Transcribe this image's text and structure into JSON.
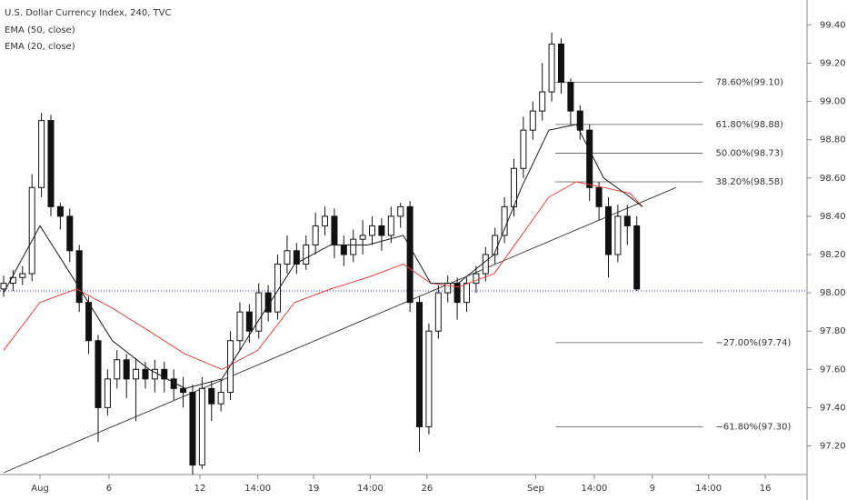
{
  "chart_data": {
    "type": "candlestick",
    "title": "U.S. Dollar Currency Index, 240, TVC",
    "legend": [
      "EMA (50, close)",
      "EMA (20, close)"
    ],
    "x": [
      0,
      1,
      2,
      3,
      4,
      5,
      6,
      7,
      8,
      9,
      10,
      11,
      12,
      13,
      14,
      15,
      16,
      17,
      18,
      19,
      20,
      21,
      22,
      23,
      24,
      25,
      26,
      27,
      28,
      29,
      30,
      31,
      32,
      33,
      34,
      35,
      36,
      37,
      38,
      39,
      40,
      41,
      42,
      43,
      44,
      45,
      46,
      47,
      48,
      49,
      50,
      51,
      52,
      53,
      54,
      55,
      56,
      57,
      58,
      59,
      60,
      61,
      62,
      63,
      64,
      65,
      66,
      67
    ],
    "open": [
      98.02,
      98.05,
      98.08,
      98.1,
      98.55,
      98.9,
      98.45,
      98.4,
      98.22,
      97.95,
      97.75,
      97.4,
      97.55,
      97.65,
      97.55,
      97.6,
      97.55,
      97.6,
      97.55,
      97.5,
      97.48,
      97.1,
      97.5,
      97.42,
      97.48,
      97.75,
      97.9,
      97.8,
      98.0,
      97.9,
      98.15,
      98.22,
      98.15,
      98.25,
      98.35,
      98.4,
      98.25,
      98.2,
      98.28,
      98.3,
      98.35,
      98.3,
      98.4,
      98.45,
      97.95,
      97.3,
      97.8,
      98.0,
      98.05,
      97.95,
      98.05,
      98.1,
      98.2,
      98.3,
      98.45,
      98.65,
      98.85,
      98.95,
      99.05,
      99.3,
      99.1,
      98.95,
      98.85,
      98.55,
      98.45,
      98.2,
      98.4,
      98.35
    ],
    "high": [
      98.09,
      98.12,
      98.14,
      98.62,
      98.94,
      98.93,
      98.47,
      98.44,
      98.25,
      97.98,
      97.78,
      97.6,
      97.7,
      97.68,
      97.66,
      97.64,
      97.65,
      97.64,
      97.6,
      97.56,
      97.52,
      97.56,
      97.54,
      97.55,
      97.8,
      97.95,
      97.94,
      98.05,
      98.04,
      98.2,
      98.3,
      98.26,
      98.3,
      98.42,
      98.45,
      98.44,
      98.3,
      98.33,
      98.38,
      98.4,
      98.39,
      98.45,
      98.47,
      98.48,
      97.98,
      97.84,
      98.04,
      98.09,
      98.08,
      98.08,
      98.14,
      98.24,
      98.34,
      98.5,
      98.7,
      98.92,
      99.0,
      99.2,
      99.36,
      99.33,
      99.12,
      98.98,
      98.88,
      98.58,
      98.5,
      98.46,
      98.46,
      98.4
    ],
    "low": [
      97.98,
      98.01,
      98.04,
      98.06,
      98.5,
      98.4,
      98.33,
      98.16,
      97.9,
      97.68,
      97.22,
      97.36,
      97.5,
      97.45,
      97.33,
      97.5,
      97.48,
      97.48,
      97.44,
      97.4,
      97.05,
      97.08,
      97.33,
      97.38,
      97.44,
      97.7,
      97.74,
      97.76,
      97.85,
      97.86,
      98.1,
      98.1,
      98.12,
      98.2,
      98.3,
      98.18,
      98.14,
      98.16,
      98.2,
      98.25,
      98.22,
      98.26,
      98.34,
      97.9,
      97.17,
      97.26,
      97.76,
      97.95,
      97.86,
      97.9,
      98.0,
      98.06,
      98.15,
      98.26,
      98.4,
      98.6,
      98.8,
      98.9,
      99.0,
      99.04,
      98.88,
      98.8,
      98.48,
      98.38,
      98.08,
      98.16,
      98.25,
      98.01
    ],
    "close": [
      98.05,
      98.08,
      98.1,
      98.55,
      98.9,
      98.45,
      98.4,
      98.22,
      97.95,
      97.75,
      97.4,
      97.55,
      97.65,
      97.55,
      97.6,
      97.55,
      97.6,
      97.55,
      97.5,
      97.48,
      97.1,
      97.5,
      97.42,
      97.48,
      97.75,
      97.9,
      97.8,
      98.0,
      97.9,
      98.15,
      98.22,
      98.15,
      98.25,
      98.35,
      98.4,
      98.25,
      98.2,
      98.28,
      98.3,
      98.35,
      98.3,
      98.4,
      98.45,
      97.95,
      97.3,
      97.8,
      98.0,
      98.05,
      97.95,
      98.05,
      98.1,
      98.2,
      98.3,
      98.45,
      98.65,
      98.85,
      98.95,
      99.05,
      99.3,
      99.1,
      98.95,
      98.85,
      98.55,
      98.45,
      98.2,
      98.4,
      98.35,
      98.02
    ],
    "series": [
      {
        "name": "EMA (50, close)",
        "color": "#e8413a",
        "x": [
          0,
          3.85,
          7.7,
          11.5,
          15.4,
          19.2,
          23.1,
          26.9,
          30.8,
          34.6,
          38.5,
          42.3,
          45.2,
          48.1,
          51.9,
          54.8,
          57.7,
          60.6,
          63.5,
          66.3,
          67.6
        ],
        "values": [
          97.7,
          97.95,
          98.02,
          97.92,
          97.8,
          97.68,
          97.6,
          97.7,
          97.95,
          98.02,
          98.08,
          98.15,
          98.05,
          98.03,
          98.1,
          98.3,
          98.5,
          98.58,
          98.55,
          98.52,
          98.45
        ]
      },
      {
        "name": "EMA (20, close)",
        "color": "#1a1a1a",
        "x": [
          0,
          3.85,
          7.7,
          11.5,
          15.4,
          19.2,
          23.1,
          26.9,
          30.8,
          34.6,
          38.5,
          42.3,
          45.2,
          48.1,
          51.9,
          54.8,
          57.7,
          60.6,
          63.5,
          66.3,
          67.6
        ],
        "values": [
          98.0,
          98.35,
          98.05,
          97.75,
          97.6,
          97.5,
          97.55,
          97.85,
          98.15,
          98.25,
          98.25,
          98.3,
          98.05,
          98.05,
          98.2,
          98.55,
          98.85,
          98.88,
          98.6,
          98.5,
          98.45
        ]
      }
    ],
    "trendline": {
      "x": [
        0,
        71.15
      ],
      "y": [
        97.06,
        98.55
      ]
    },
    "price_line": 98.01,
    "fib_x": [
      58.4,
      74.0
    ],
    "fib_levels": [
      {
        "value": 99.1,
        "label": "78.60%(99.10)"
      },
      {
        "value": 98.88,
        "label": "61.80%(98.88)"
      },
      {
        "value": 98.73,
        "label": "50.00%(98.73)"
      },
      {
        "value": 98.58,
        "label": "38.20%(98.58)"
      },
      {
        "value": 97.74,
        "label": "−27.00%(97.74)"
      },
      {
        "value": 97.3,
        "label": "−61.80%(97.30)"
      }
    ],
    "xlim": [
      0,
      85.4
    ],
    "xticks": [
      {
        "value": 3.85,
        "label": "Aug"
      },
      {
        "value": 11.15,
        "label": "6"
      },
      {
        "value": 20.77,
        "label": "12"
      },
      {
        "value": 26.9,
        "label": "14:00"
      },
      {
        "value": 32.8,
        "label": "19"
      },
      {
        "value": 38.8,
        "label": "14:00"
      },
      {
        "value": 44.8,
        "label": "26"
      },
      {
        "value": 56.3,
        "label": "Sep"
      },
      {
        "value": 62.5,
        "label": "14:00"
      },
      {
        "value": 68.65,
        "label": "9"
      },
      {
        "value": 74.6,
        "label": "14:00"
      },
      {
        "value": 80.6,
        "label": "16"
      }
    ],
    "ylim": [
      97.06,
      99.53
    ],
    "yticks": [
      {
        "value": 97.2,
        "label": "97.20"
      },
      {
        "value": 97.4,
        "label": "97.40"
      },
      {
        "value": 97.6,
        "label": "97.60"
      },
      {
        "value": 97.8,
        "label": "97.80"
      },
      {
        "value": 98.0,
        "label": "98.00"
      },
      {
        "value": 98.2,
        "label": "98.20"
      },
      {
        "value": 98.4,
        "label": "98.40"
      },
      {
        "value": 98.6,
        "label": "98.60"
      },
      {
        "value": 98.8,
        "label": "98.80"
      },
      {
        "value": 99.0,
        "label": "99.00"
      },
      {
        "value": 99.2,
        "label": "99.20"
      },
      {
        "value": 99.4,
        "label": "99.40"
      }
    ]
  }
}
